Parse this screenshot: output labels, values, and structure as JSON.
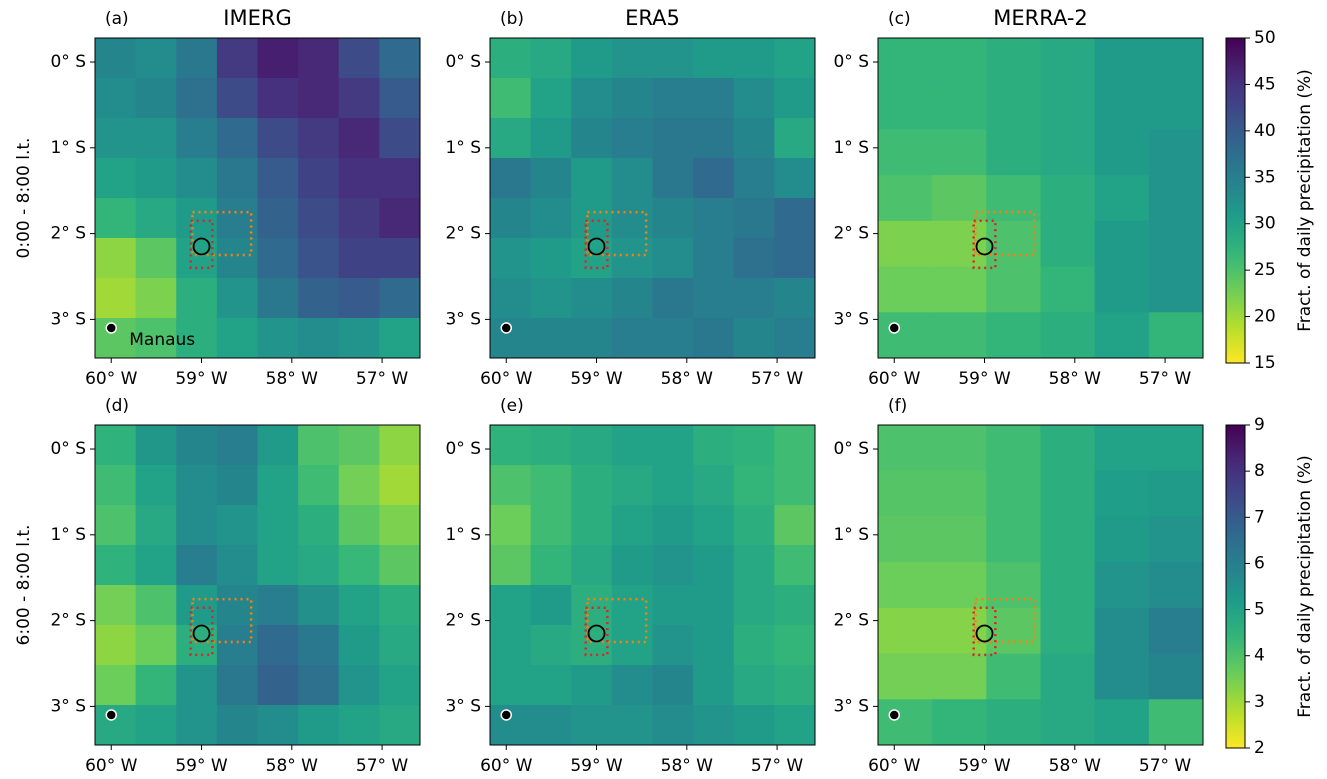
{
  "chart_data": [
    {
      "type": "heatmap",
      "ylabel": "0:00 - 8:00 l.t.",
      "xlim": [
        -60.18,
        -56.58
      ],
      "ylim": [
        -3.45,
        0.28
      ],
      "xticks": [
        {
          "value": -60,
          "label": "60° W"
        },
        {
          "value": -59,
          "label": "59° W"
        },
        {
          "value": -58,
          "label": "58° W"
        },
        {
          "value": -57,
          "label": "57° W"
        }
      ],
      "yticks": [
        {
          "value": 0,
          "label": "0° S"
        },
        {
          "value": -1,
          "label": "1° S"
        },
        {
          "value": -2,
          "label": "2° S"
        },
        {
          "value": -3,
          "label": "3° S"
        }
      ],
      "colorbar": {
        "label": "Fract. of daily precipitation (%)",
        "zlim": [
          15,
          50
        ],
        "ticks": [
          15,
          20,
          25,
          30,
          35,
          40,
          45,
          50
        ]
      },
      "annotation": "Manaus",
      "panels": [
        {
          "label": "(a)",
          "title": "IMERG",
          "values": [
            [
              34,
              33,
              36,
              44,
              47,
              46,
              42,
              38
            ],
            [
              33,
              34,
              37,
              42,
              45,
              46,
              44,
              40
            ],
            [
              32,
              32,
              35,
              38,
              42,
              44,
              46,
              42
            ],
            [
              30,
              31,
              33,
              36,
              40,
              43,
              45,
              45
            ],
            [
              27,
              29,
              31,
              35,
              39,
              42,
              44,
              46
            ],
            [
              21,
              24,
              30,
              34,
              38,
              41,
              43,
              43
            ],
            [
              20,
              22,
              28,
              32,
              36,
              39,
              40,
              38
            ],
            [
              24,
              25,
              28,
              30,
              32,
              33,
              32,
              30
            ]
          ]
        },
        {
          "label": "(b)",
          "title": "ERA5",
          "values": [
            [
              28,
              29,
              31,
              32,
              32,
              31,
              31,
              30
            ],
            [
              26,
              30,
              33,
              34,
              35,
              35,
              33,
              31
            ],
            [
              29,
              31,
              34,
              35,
              36,
              36,
              34,
              29
            ],
            [
              36,
              34,
              31,
              33,
              36,
              38,
              35,
              33
            ],
            [
              34,
              33,
              31,
              33,
              34,
              35,
              36,
              38
            ],
            [
              32,
              31,
              30,
              32,
              33,
              35,
              37,
              38
            ],
            [
              33,
              32,
              33,
              34,
              36,
              35,
              35,
              34
            ],
            [
              34,
              34,
              34,
              35,
              35,
              36,
              34,
              35
            ]
          ]
        },
        {
          "label": "(c)",
          "title": "MERRA-2",
          "values": [
            [
              27,
              27,
              28,
              29,
              31,
              31
            ],
            [
              27,
              27,
              28,
              29,
              31,
              31
            ],
            [
              26,
              26,
              28,
              29,
              31,
              32
            ],
            [
              25,
              24,
              26,
              28,
              30,
              32
            ],
            [
              22,
              22,
              25,
              28,
              31,
              32
            ],
            [
              23,
              23,
              25,
              27,
              31,
              32
            ],
            [
              26,
              26,
              27,
              28,
              30,
              27
            ]
          ]
        }
      ]
    },
    {
      "type": "heatmap",
      "ylabel": "6:00 - 8:00 l.t.",
      "xlim": [
        -60.18,
        -56.58
      ],
      "ylim": [
        -3.45,
        0.28
      ],
      "xticks": [
        {
          "value": -60,
          "label": "60° W"
        },
        {
          "value": -59,
          "label": "59° W"
        },
        {
          "value": -58,
          "label": "58° W"
        },
        {
          "value": -57,
          "label": "57° W"
        }
      ],
      "yticks": [
        {
          "value": 0,
          "label": "0° S"
        },
        {
          "value": -1,
          "label": "1° S"
        },
        {
          "value": -2,
          "label": "2° S"
        },
        {
          "value": -3,
          "label": "3° S"
        }
      ],
      "colorbar": {
        "label": "Fract. of daily precipitation (%)",
        "zlim": [
          2,
          9
        ],
        "ticks": [
          2,
          3,
          4,
          5,
          6,
          7,
          8,
          9
        ]
      },
      "panels": [
        {
          "label": "(d)",
          "values": [
            [
              4.5,
              5.3,
              5.8,
              6.0,
              5.2,
              4.0,
              3.8,
              3.2
            ],
            [
              4.2,
              5.0,
              5.6,
              5.8,
              5.0,
              4.2,
              3.5,
              3.0
            ],
            [
              4.0,
              4.8,
              5.6,
              5.4,
              5.0,
              4.6,
              3.8,
              3.4
            ],
            [
              4.5,
              5.0,
              6.0,
              5.6,
              5.0,
              4.8,
              4.3,
              3.8
            ],
            [
              3.5,
              4.0,
              5.2,
              5.8,
              6.0,
              5.5,
              5.0,
              4.6
            ],
            [
              3.2,
              3.6,
              4.6,
              6.0,
              6.6,
              6.2,
              5.2,
              4.8
            ],
            [
              3.6,
              4.4,
              5.4,
              6.2,
              6.8,
              6.4,
              5.4,
              5.0
            ],
            [
              4.8,
              5.0,
              5.4,
              5.8,
              5.6,
              5.2,
              5.0,
              4.8
            ]
          ]
        },
        {
          "label": "(e)",
          "values": [
            [
              4.5,
              4.6,
              4.8,
              5.0,
              5.0,
              4.6,
              4.5,
              4.2
            ],
            [
              4.0,
              4.2,
              4.6,
              4.8,
              5.0,
              4.8,
              4.4,
              4.2
            ],
            [
              3.6,
              4.2,
              4.6,
              5.0,
              5.2,
              5.0,
              4.6,
              3.8
            ],
            [
              3.8,
              4.4,
              4.8,
              5.2,
              5.4,
              5.2,
              4.8,
              4.2
            ],
            [
              5.0,
              5.2,
              4.6,
              5.0,
              5.2,
              5.2,
              4.8,
              4.6
            ],
            [
              5.0,
              4.8,
              4.6,
              5.0,
              5.4,
              5.2,
              4.6,
              4.4
            ],
            [
              5.0,
              5.0,
              5.2,
              5.6,
              5.8,
              5.2,
              4.8,
              4.6
            ],
            [
              5.6,
              5.6,
              5.4,
              5.4,
              5.6,
              5.4,
              5.2,
              5.0
            ]
          ]
        },
        {
          "label": "(f)",
          "values": [
            [
              4.0,
              4.0,
              4.2,
              4.6,
              5.0,
              5.0
            ],
            [
              3.9,
              3.9,
              4.2,
              4.6,
              5.1,
              5.2
            ],
            [
              3.8,
              3.8,
              4.2,
              4.6,
              5.2,
              5.4
            ],
            [
              3.6,
              3.6,
              4.0,
              4.6,
              5.4,
              5.6
            ],
            [
              3.3,
              3.3,
              3.8,
              4.6,
              5.6,
              6.0
            ],
            [
              3.5,
              3.5,
              4.2,
              4.8,
              5.6,
              5.8
            ],
            [
              4.2,
              4.4,
              4.6,
              4.8,
              5.0,
              4.2
            ]
          ]
        }
      ]
    }
  ]
}
